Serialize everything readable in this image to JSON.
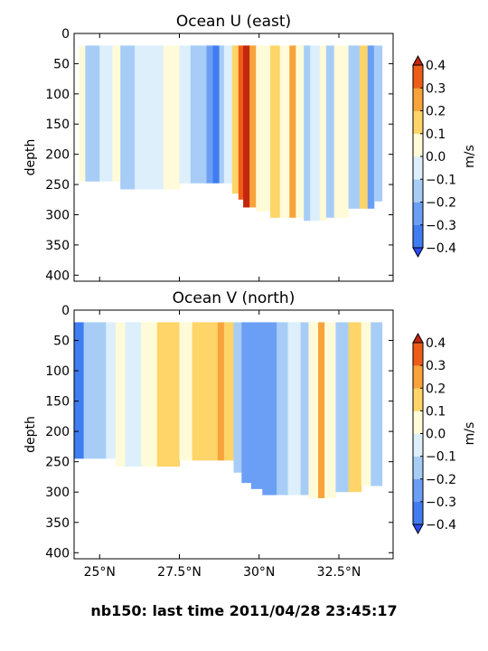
{
  "suptitle": "nb150: last time 2011/04/28 23:45:17",
  "colorbar": {
    "label": "m/s",
    "levels": [
      -0.4,
      -0.3,
      -0.2,
      -0.1,
      0.0,
      0.1,
      0.2,
      0.3,
      0.4
    ],
    "tick_labels": [
      "−0.4",
      "−0.3",
      "−0.2",
      "−0.1",
      "0.0",
      "0.1",
      "0.2",
      "0.3",
      "0.4"
    ],
    "colors": [
      "#2b4cf5",
      "#3f7df0",
      "#6b9ff5",
      "#a7cdf7",
      "#dceffb",
      "#fffbd8",
      "#ffd468",
      "#f8a33a",
      "#ee5d18",
      "#c2260f"
    ],
    "extend": "both"
  },
  "chart_data": [
    {
      "type": "heatmap",
      "title": "Ocean U (east)",
      "ylabel": "depth",
      "xlabel": "",
      "xlim": [
        24.2,
        34.2
      ],
      "ylim": [
        410,
        0
      ],
      "yticks": [
        0,
        50,
        100,
        150,
        200,
        250,
        300,
        350,
        400
      ],
      "xticks": [
        25,
        27.5,
        30,
        32.5
      ],
      "xtick_labels": [],
      "columns": [
        {
          "lat_start": 24.2,
          "lat_end": 24.35,
          "bottom_depth": 0,
          "u": null
        },
        {
          "lat_start": 24.35,
          "lat_end": 24.55,
          "bottom_depth": 245,
          "u": 0.06
        },
        {
          "lat_start": 24.55,
          "lat_end": 25.0,
          "bottom_depth": 245,
          "u": -0.12
        },
        {
          "lat_start": 25.0,
          "lat_end": 25.4,
          "bottom_depth": 245,
          "u": -0.05
        },
        {
          "lat_start": 25.4,
          "lat_end": 25.65,
          "bottom_depth": 245,
          "u": 0.06
        },
        {
          "lat_start": 25.65,
          "lat_end": 26.1,
          "bottom_depth": 258,
          "u": -0.16
        },
        {
          "lat_start": 26.1,
          "lat_end": 26.5,
          "bottom_depth": 258,
          "u": -0.08
        },
        {
          "lat_start": 26.5,
          "lat_end": 27.0,
          "bottom_depth": 258,
          "u": -0.03
        },
        {
          "lat_start": 27.0,
          "lat_end": 27.5,
          "bottom_depth": 258,
          "u": 0.06
        },
        {
          "lat_start": 27.5,
          "lat_end": 27.85,
          "bottom_depth": 248,
          "u": -0.05
        },
        {
          "lat_start": 27.85,
          "lat_end": 28.35,
          "bottom_depth": 248,
          "u": -0.13
        },
        {
          "lat_start": 28.35,
          "lat_end": 28.55,
          "bottom_depth": 248,
          "u": -0.22
        },
        {
          "lat_start": 28.55,
          "lat_end": 28.75,
          "bottom_depth": 248,
          "u": -0.36
        },
        {
          "lat_start": 28.75,
          "lat_end": 28.9,
          "bottom_depth": 248,
          "u": -0.14
        },
        {
          "lat_start": 28.9,
          "lat_end": 29.15,
          "bottom_depth": 248,
          "u": -0.04
        },
        {
          "lat_start": 29.15,
          "lat_end": 29.35,
          "bottom_depth": 265,
          "u": 0.14
        },
        {
          "lat_start": 29.35,
          "lat_end": 29.5,
          "bottom_depth": 275,
          "u": 0.32
        },
        {
          "lat_start": 29.5,
          "lat_end": 29.7,
          "bottom_depth": 288,
          "u": 0.42
        },
        {
          "lat_start": 29.7,
          "lat_end": 29.9,
          "bottom_depth": 288,
          "u": 0.23
        },
        {
          "lat_start": 29.9,
          "lat_end": 30.35,
          "bottom_depth": 295,
          "u": 0.06
        },
        {
          "lat_start": 30.35,
          "lat_end": 30.65,
          "bottom_depth": 305,
          "u": 0.16
        },
        {
          "lat_start": 30.65,
          "lat_end": 30.95,
          "bottom_depth": 305,
          "u": 0.06
        },
        {
          "lat_start": 30.95,
          "lat_end": 31.15,
          "bottom_depth": 305,
          "u": 0.24
        },
        {
          "lat_start": 31.15,
          "lat_end": 31.4,
          "bottom_depth": 305,
          "u": 0.06
        },
        {
          "lat_start": 31.4,
          "lat_end": 31.6,
          "bottom_depth": 310,
          "u": -0.14
        },
        {
          "lat_start": 31.6,
          "lat_end": 31.9,
          "bottom_depth": 310,
          "u": -0.04
        },
        {
          "lat_start": 31.9,
          "lat_end": 32.1,
          "bottom_depth": 310,
          "u": 0.06
        },
        {
          "lat_start": 32.1,
          "lat_end": 32.35,
          "bottom_depth": 305,
          "u": -0.15
        },
        {
          "lat_start": 32.35,
          "lat_end": 32.8,
          "bottom_depth": 305,
          "u": 0.05
        },
        {
          "lat_start": 32.8,
          "lat_end": 33.15,
          "bottom_depth": 290,
          "u": -0.12
        },
        {
          "lat_start": 33.15,
          "lat_end": 33.4,
          "bottom_depth": 290,
          "u": 0.15
        },
        {
          "lat_start": 33.4,
          "lat_end": 33.6,
          "bottom_depth": 290,
          "u": -0.27
        },
        {
          "lat_start": 33.6,
          "lat_end": 33.85,
          "bottom_depth": 278,
          "u": -0.13
        },
        {
          "lat_start": 33.85,
          "lat_end": 34.2,
          "bottom_depth": 0,
          "u": null
        }
      ]
    },
    {
      "type": "heatmap",
      "title": "Ocean V (north)",
      "ylabel": "depth",
      "xlabel": "",
      "xlim": [
        24.2,
        34.2
      ],
      "ylim": [
        410,
        0
      ],
      "yticks": [
        0,
        50,
        100,
        150,
        200,
        250,
        300,
        350,
        400
      ],
      "xticks": [
        25,
        27.5,
        30,
        32.5
      ],
      "xtick_labels": [
        "25°N",
        "27.5°N",
        "30°N",
        "32.5°N"
      ],
      "columns": [
        {
          "lat_start": 24.2,
          "lat_end": 24.5,
          "bottom_depth": 245,
          "v": -0.32
        },
        {
          "lat_start": 24.5,
          "lat_end": 25.2,
          "bottom_depth": 245,
          "v": -0.14
        },
        {
          "lat_start": 25.2,
          "lat_end": 25.5,
          "bottom_depth": 245,
          "v": -0.04
        },
        {
          "lat_start": 25.5,
          "lat_end": 25.8,
          "bottom_depth": 258,
          "v": 0.06
        },
        {
          "lat_start": 25.8,
          "lat_end": 26.3,
          "bottom_depth": 258,
          "v": -0.05
        },
        {
          "lat_start": 26.3,
          "lat_end": 26.8,
          "bottom_depth": 258,
          "v": 0.05
        },
        {
          "lat_start": 26.8,
          "lat_end": 27.5,
          "bottom_depth": 258,
          "v": 0.12
        },
        {
          "lat_start": 27.5,
          "lat_end": 27.9,
          "bottom_depth": 248,
          "v": 0.06
        },
        {
          "lat_start": 27.9,
          "lat_end": 28.7,
          "bottom_depth": 248,
          "v": 0.16
        },
        {
          "lat_start": 28.7,
          "lat_end": 28.9,
          "bottom_depth": 248,
          "v": 0.26
        },
        {
          "lat_start": 28.9,
          "lat_end": 29.2,
          "bottom_depth": 248,
          "v": 0.16
        },
        {
          "lat_start": 29.2,
          "lat_end": 29.45,
          "bottom_depth": 268,
          "v": -0.13
        },
        {
          "lat_start": 29.45,
          "lat_end": 29.75,
          "bottom_depth": 285,
          "v": -0.3
        },
        {
          "lat_start": 29.75,
          "lat_end": 30.1,
          "bottom_depth": 295,
          "v": -0.22
        },
        {
          "lat_start": 30.1,
          "lat_end": 30.55,
          "bottom_depth": 305,
          "v": -0.24
        },
        {
          "lat_start": 30.55,
          "lat_end": 30.9,
          "bottom_depth": 305,
          "v": -0.12
        },
        {
          "lat_start": 30.9,
          "lat_end": 31.3,
          "bottom_depth": 305,
          "v": -0.03
        },
        {
          "lat_start": 31.3,
          "lat_end": 31.55,
          "bottom_depth": 305,
          "v": -0.14
        },
        {
          "lat_start": 31.55,
          "lat_end": 31.85,
          "bottom_depth": 310,
          "v": 0.06
        },
        {
          "lat_start": 31.85,
          "lat_end": 32.05,
          "bottom_depth": 310,
          "v": 0.22
        },
        {
          "lat_start": 32.05,
          "lat_end": 32.4,
          "bottom_depth": 310,
          "v": 0.06
        },
        {
          "lat_start": 32.4,
          "lat_end": 32.8,
          "bottom_depth": 300,
          "v": -0.13
        },
        {
          "lat_start": 32.8,
          "lat_end": 33.2,
          "bottom_depth": 300,
          "v": 0.16
        },
        {
          "lat_start": 33.2,
          "lat_end": 33.5,
          "bottom_depth": 290,
          "v": 0.05
        },
        {
          "lat_start": 33.5,
          "lat_end": 33.85,
          "bottom_depth": 290,
          "v": -0.12
        },
        {
          "lat_start": 33.85,
          "lat_end": 34.2,
          "bottom_depth": 0,
          "v": null
        }
      ]
    }
  ]
}
